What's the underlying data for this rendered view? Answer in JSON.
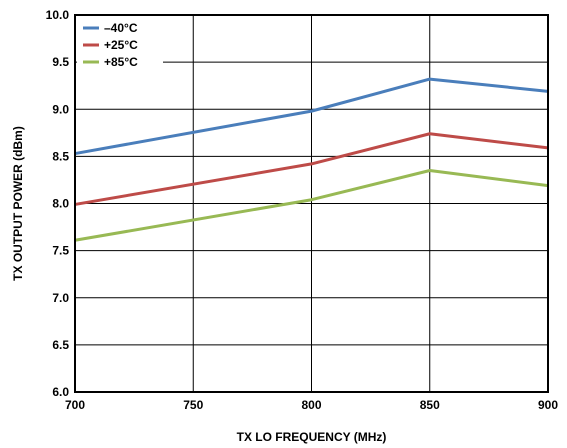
{
  "chart_data": {
    "type": "line",
    "xlabel": "TX LO FREQUENCY (MHz)",
    "ylabel": "TX OUTPUT POWER (dBm)",
    "xlim": [
      700,
      900
    ],
    "ylim": [
      6.0,
      10.0
    ],
    "x_ticks": [
      "700",
      "750",
      "800",
      "850",
      "900"
    ],
    "y_ticks": [
      "6.0",
      "6.5",
      "7.0",
      "7.5",
      "8.0",
      "8.5",
      "9.0",
      "9.5",
      "10.0"
    ],
    "grid": true,
    "legend_position": "top-left",
    "x": [
      700,
      800,
      850,
      900
    ],
    "series": [
      {
        "name": "–40°C",
        "color": "#4a7ebb",
        "values": [
          8.53,
          8.98,
          9.32,
          9.19
        ]
      },
      {
        "name": "+25°C",
        "color": "#be4b48",
        "values": [
          7.99,
          8.42,
          8.74,
          8.59
        ]
      },
      {
        "name": "+85°C",
        "color": "#98b954",
        "values": [
          7.61,
          8.04,
          8.35,
          8.19
        ]
      }
    ]
  }
}
